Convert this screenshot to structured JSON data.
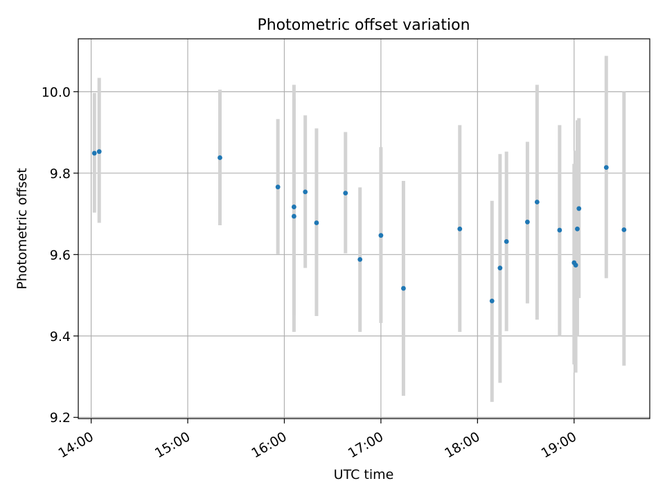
{
  "chart_data": {
    "type": "scatter",
    "title": "Photometric offset variation",
    "xlabel": "UTC time",
    "ylabel": "Photometric offset",
    "xlim": [
      "13:52",
      "19:47"
    ],
    "ylim": [
      9.197,
      10.13
    ],
    "x_ticks": [
      "14:00",
      "15:00",
      "16:00",
      "17:00",
      "18:00",
      "19:00"
    ],
    "y_ticks": [
      "9.2",
      "9.4",
      "9.6",
      "9.8",
      "10.0"
    ],
    "grid": true,
    "colors": {
      "point": "#1f77b4",
      "errorbar": "#d3d3d3",
      "grid": "#b0b0b0"
    },
    "series": [
      {
        "points": [
          {
            "x": "14:02",
            "y": 9.849,
            "ylow": 9.703,
            "yhigh": 9.997
          },
          {
            "x": "14:05",
            "y": 9.853,
            "ylow": 9.678,
            "yhigh": 10.034
          },
          {
            "x": "15:20",
            "y": 9.838,
            "ylow": 9.672,
            "yhigh": 10.005
          },
          {
            "x": "15:56",
            "y": 9.766,
            "ylow": 9.601,
            "yhigh": 9.933
          },
          {
            "x": "16:06",
            "y": 9.717,
            "ylow": 9.451,
            "yhigh": 10.017
          },
          {
            "x": "16:06",
            "y": 9.694,
            "ylow": 9.41,
            "yhigh": 9.983
          },
          {
            "x": "16:13",
            "y": 9.754,
            "ylow": 9.567,
            "yhigh": 9.942
          },
          {
            "x": "16:20",
            "y": 9.678,
            "ylow": 9.449,
            "yhigh": 9.91
          },
          {
            "x": "16:38",
            "y": 9.751,
            "ylow": 9.603,
            "yhigh": 9.901
          },
          {
            "x": "16:47",
            "y": 9.588,
            "ylow": 9.41,
            "yhigh": 9.765
          },
          {
            "x": "17:00",
            "y": 9.647,
            "ylow": 9.432,
            "yhigh": 9.864
          },
          {
            "x": "17:14",
            "y": 9.517,
            "ylow": 9.253,
            "yhigh": 9.781
          },
          {
            "x": "17:49",
            "y": 9.663,
            "ylow": 9.41,
            "yhigh": 9.918
          },
          {
            "x": "18:09",
            "y": 9.486,
            "ylow": 9.238,
            "yhigh": 9.732
          },
          {
            "x": "18:14",
            "y": 9.567,
            "ylow": 9.285,
            "yhigh": 9.847
          },
          {
            "x": "18:18",
            "y": 9.632,
            "ylow": 9.412,
            "yhigh": 9.853
          },
          {
            "x": "18:31",
            "y": 9.68,
            "ylow": 9.48,
            "yhigh": 9.877
          },
          {
            "x": "18:37",
            "y": 9.729,
            "ylow": 9.44,
            "yhigh": 10.017
          },
          {
            "x": "18:51",
            "y": 9.66,
            "ylow": 9.4,
            "yhigh": 9.918
          },
          {
            "x": "19:00",
            "y": 9.58,
            "ylow": 9.33,
            "yhigh": 9.823
          },
          {
            "x": "19:01",
            "y": 9.574,
            "ylow": 9.31,
            "yhigh": 9.855
          },
          {
            "x": "19:02",
            "y": 9.663,
            "ylow": 9.4,
            "yhigh": 9.93
          },
          {
            "x": "19:03",
            "y": 9.713,
            "ylow": 9.493,
            "yhigh": 9.935
          },
          {
            "x": "19:20",
            "y": 9.814,
            "ylow": 9.542,
            "yhigh": 10.088
          },
          {
            "x": "19:31",
            "y": 9.661,
            "ylow": 9.327,
            "yhigh": 10.0
          }
        ]
      }
    ]
  }
}
